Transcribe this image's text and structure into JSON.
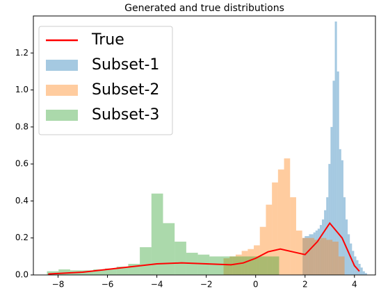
{
  "chart_data": {
    "type": "histogram",
    "title": "Generated and true distributions",
    "xlim": [
      -9.0,
      4.85
    ],
    "ylim": [
      0,
      1.4
    ],
    "xticks": [
      {
        "value": -8,
        "label": "−8"
      },
      {
        "value": -6,
        "label": "−6"
      },
      {
        "value": -4,
        "label": "−4"
      },
      {
        "value": -2,
        "label": "−2"
      },
      0,
      2,
      4
    ],
    "yticks": [
      {
        "value": 0,
        "label": "0.0"
      },
      0.2,
      0.4,
      0.6,
      0.8,
      {
        "value": 1,
        "label": "1.0"
      },
      1.2
    ],
    "legend": "upper left",
    "series": [
      {
        "name": "True",
        "type": "line",
        "color": "#ff0000",
        "x": [
          -8.4,
          -7,
          -6,
          -5,
          -4,
          -3,
          -2,
          -1,
          -0.5,
          0,
          0.5,
          1,
          1.5,
          2,
          2.5,
          3,
          3.5,
          4,
          4.2
        ],
        "values": [
          0.005,
          0.015,
          0.03,
          0.045,
          0.06,
          0.065,
          0.06,
          0.055,
          0.065,
          0.09,
          0.125,
          0.14,
          0.125,
          0.11,
          0.18,
          0.28,
          0.2,
          0.05,
          0.02
        ]
      },
      {
        "name": "Subset-1",
        "type": "histogram",
        "color": "#1f77b4",
        "bins": [
          1.9,
          1.987,
          2.074,
          2.161,
          2.248,
          2.335,
          2.422,
          2.509,
          2.596,
          2.683,
          2.77,
          2.857,
          2.944,
          3.031,
          3.118,
          3.205,
          3.292,
          3.379,
          3.466,
          3.553,
          3.64,
          3.727,
          3.814,
          3.901,
          3.988,
          4.075,
          4.162,
          4.249,
          4.336,
          4.423,
          4.51
        ],
        "values": [
          0.2,
          0.21,
          0.21,
          0.22,
          0.22,
          0.23,
          0.24,
          0.25,
          0.27,
          0.3,
          0.35,
          0.42,
          0.6,
          0.8,
          1.05,
          1.37,
          1.1,
          0.68,
          0.62,
          0.42,
          0.3,
          0.22,
          0.17,
          0.13,
          0.1,
          0.08,
          0.06,
          0.04,
          0.02,
          0.01
        ]
      },
      {
        "name": "Subset-2",
        "type": "histogram",
        "color": "#ff7f0e",
        "bins": [
          -1.3,
          -1.055,
          -0.81,
          -0.565,
          -0.32,
          -0.075,
          0.17,
          0.415,
          0.66,
          0.905,
          1.15,
          1.395,
          1.64,
          1.885,
          2.13,
          2.375,
          2.62,
          2.865,
          3.11,
          3.355,
          3.6
        ],
        "values": [
          0.09,
          0.1,
          0.11,
          0.13,
          0.14,
          0.16,
          0.26,
          0.38,
          0.5,
          0.57,
          0.63,
          0.42,
          0.24,
          0.2,
          0.2,
          0.19,
          0.2,
          0.19,
          0.18,
          0.1
        ]
      },
      {
        "name": "Subset-3",
        "type": "histogram",
        "color": "#2ca02c",
        "bins": [
          -8.45,
          -7.98,
          -7.51,
          -7.04,
          -6.57,
          -6.1,
          -5.63,
          -5.16,
          -4.69,
          -4.22,
          -3.75,
          -3.28,
          -2.81,
          -2.34,
          -1.87,
          -1.4,
          -0.93,
          -0.46,
          0.01,
          0.48,
          0.95
        ],
        "values": [
          0.02,
          0.03,
          0.025,
          0.025,
          0.03,
          0.035,
          0.045,
          0.06,
          0.15,
          0.44,
          0.28,
          0.18,
          0.12,
          0.11,
          0.1,
          0.1,
          0.1,
          0.1,
          0.1,
          0.1
        ]
      }
    ]
  }
}
